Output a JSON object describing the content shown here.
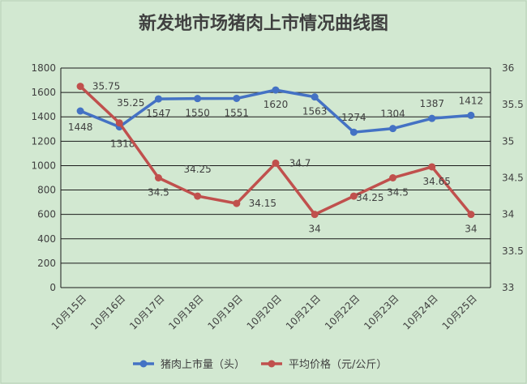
{
  "chart_data": {
    "type": "line",
    "title": "新发地市场猪肉上市情况曲线图",
    "categories": [
      "10月15日",
      "10月16日",
      "10月17日",
      "10月18日",
      "10月19日",
      "10月20日",
      "10月21日",
      "10月22日",
      "10月23日",
      "10月24日",
      "10月25日"
    ],
    "series": [
      {
        "name": "猪肉上市量（头）",
        "axis": "left",
        "color": "#4472c4",
        "values": [
          1448,
          1318,
          1547,
          1550,
          1551,
          1620,
          1563,
          1274,
          1304,
          1387,
          1412
        ],
        "labels": [
          "1448",
          "1318",
          "1547",
          "1550",
          "1551",
          "1620",
          "1563",
          "1274",
          "1304",
          "1387",
          "1412"
        ]
      },
      {
        "name": "平均价格（元/公斤）",
        "axis": "right",
        "color": "#c0504d",
        "values": [
          35.75,
          35.25,
          34.5,
          34.25,
          34.15,
          34.7,
          34,
          34.25,
          34.5,
          34.65,
          34
        ],
        "labels": [
          "35.75",
          "35.25",
          "34.5",
          "34.25",
          "34.15",
          "34.7",
          "34",
          "34.25",
          "34.5",
          "34.65",
          "34"
        ]
      }
    ],
    "y_left": {
      "min": 0,
      "max": 1800,
      "step": 200,
      "ticks": [
        "0",
        "200",
        "400",
        "600",
        "800",
        "1000",
        "1200",
        "1400",
        "1600",
        "1800"
      ]
    },
    "y_right": {
      "min": 33,
      "max": 36,
      "step": 0.5,
      "ticks": [
        "33",
        "33.5",
        "34",
        "34.5",
        "35",
        "35.5",
        "36"
      ]
    },
    "grid": true,
    "legend_position": "bottom"
  }
}
